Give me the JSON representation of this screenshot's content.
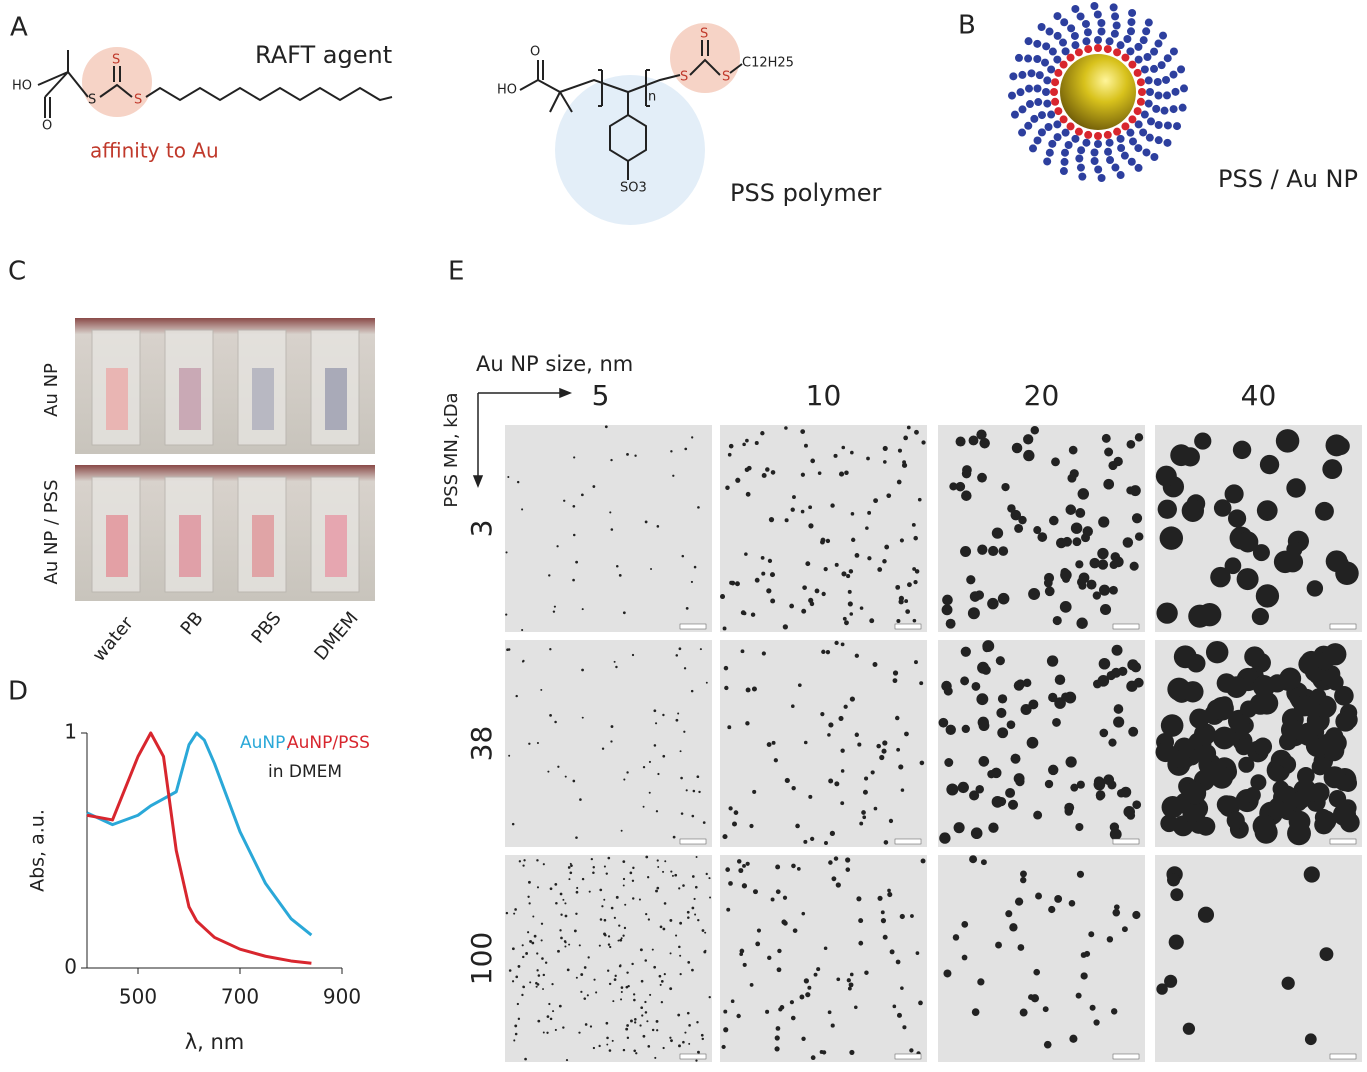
{
  "panel_a": {
    "letter": "A",
    "title": "RAFT agent",
    "note": "affinity to Au",
    "atoms": [
      "HO",
      "O",
      "S",
      "S",
      "S"
    ]
  },
  "polymer": {
    "title": "PSS polymer",
    "atoms": [
      "O",
      "HO",
      "n",
      "S",
      "S",
      "S",
      "C12H25",
      "SO3"
    ]
  },
  "panel_b": {
    "letter": "B",
    "title": "PSS / Au NP"
  },
  "panel_c": {
    "letter": "C",
    "rows": [
      "Au NP",
      "Au NP / PSS"
    ],
    "columns": [
      "water",
      "PB",
      "PBS",
      "DMEM"
    ]
  },
  "panel_d": {
    "letter": "D",
    "note": "in DMEM"
  },
  "panel_e": {
    "letter": "E",
    "x_label": "Au NP size, nm",
    "y_label": "PSS MN, kDa",
    "columns": [
      "5",
      "10",
      "20",
      "40"
    ],
    "rows": [
      "3",
      "38",
      "100"
    ]
  },
  "chart_data": {
    "type": "line",
    "x_label": "λ, nm",
    "y_label": "Abs, a.u.",
    "x": [
      400,
      450,
      500,
      525,
      550,
      575,
      600,
      615,
      630,
      650,
      700,
      750,
      800,
      840
    ],
    "series": [
      {
        "name": "AuNP,",
        "color": "#2aa8d8",
        "values": [
          0.66,
          0.61,
          0.65,
          0.69,
          0.72,
          0.75,
          0.95,
          1.0,
          0.97,
          0.87,
          0.58,
          0.36,
          0.21,
          0.14
        ]
      },
      {
        "name": "AuNP/PSS",
        "color": "#d8262e",
        "values": [
          0.65,
          0.63,
          0.9,
          1.0,
          0.9,
          0.5,
          0.26,
          0.2,
          0.17,
          0.13,
          0.08,
          0.05,
          0.03,
          0.02
        ]
      }
    ],
    "xlim": [
      400,
      900
    ],
    "xticks": [
      500,
      700,
      900
    ],
    "ylim": [
      0,
      1
    ],
    "yticks": [
      0,
      1
    ]
  }
}
